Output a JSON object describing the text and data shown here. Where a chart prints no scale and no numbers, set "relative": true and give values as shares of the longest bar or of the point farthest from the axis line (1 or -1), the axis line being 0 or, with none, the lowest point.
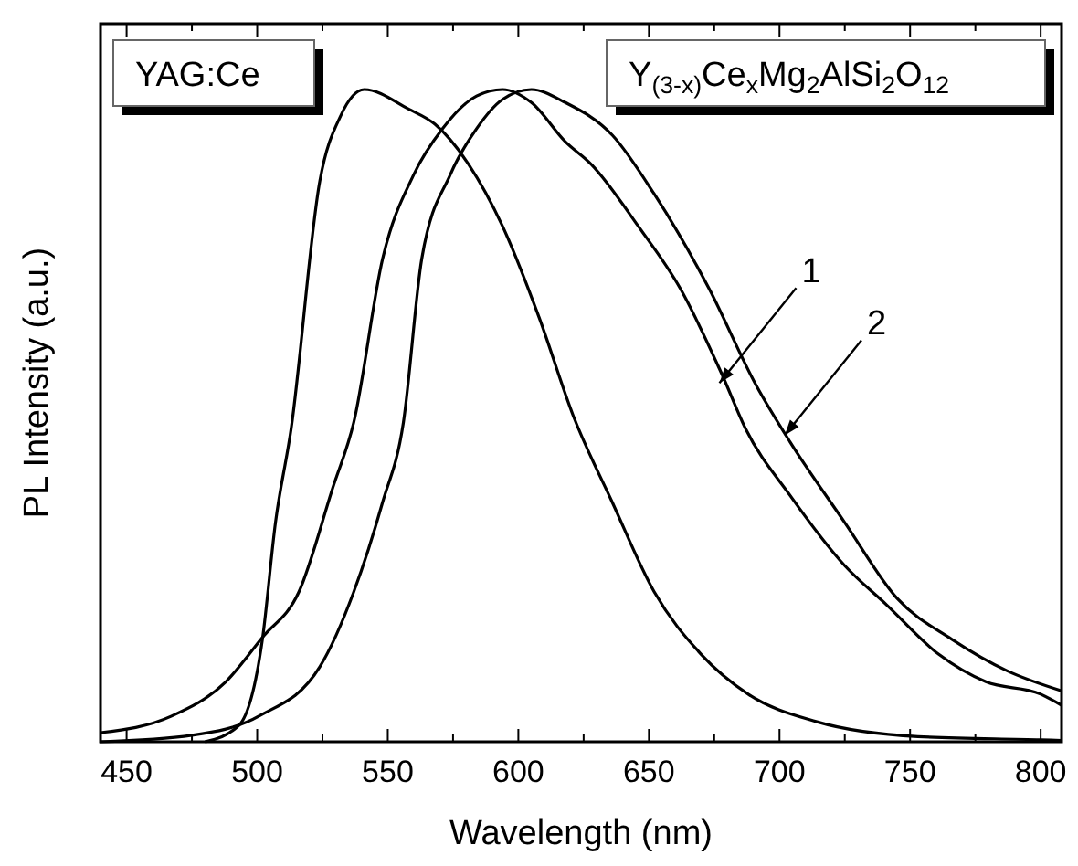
{
  "chart_data": {
    "type": "line",
    "relative": true,
    "xlabel": "Wavelength (nm)",
    "ylabel": "PL Intensity (a.u.)",
    "xlim": [
      440,
      808
    ],
    "xticks": [
      450,
      {
        "value": 475,
        "label": null
      },
      500,
      {
        "value": 525,
        "label": null
      },
      550,
      {
        "value": 575,
        "label": null
      },
      600,
      {
        "value": 625,
        "label": null
      },
      650,
      {
        "value": 675,
        "label": null
      },
      700,
      {
        "value": 725,
        "label": null
      },
      750,
      {
        "value": 775,
        "label": null
      },
      800
    ],
    "grid": false,
    "marker": "none",
    "line_style": "solid",
    "series": [
      {
        "color": "#000000",
        "x": [
          480,
          493,
          502,
          507,
          513,
          524,
          532,
          541,
          558,
          568,
          581,
          594,
          608,
          621,
          636,
          652,
          670,
          688,
          714,
          753,
          800,
          808
        ],
        "values": [
          0,
          0.025,
          0.157,
          0.336,
          0.48,
          0.86,
          0.96,
          1,
          0.97,
          0.947,
          0.885,
          0.79,
          0.65,
          0.5,
          0.367,
          0.23,
          0.134,
          0.073,
          0.031,
          0.008,
          0.003,
          0.002
        ]
      },
      {
        "color": "#000000",
        "x": [
          440,
          467,
          488,
          502,
          516,
          529,
          537,
          548,
          560,
          571,
          584,
          594,
          605,
          618,
          628,
          646,
          662,
          678,
          687,
          704,
          725,
          741,
          761,
          779,
          800,
          808
        ],
        "values": [
          0.014,
          0.039,
          0.092,
          0.16,
          0.23,
          0.39,
          0.49,
          0.74,
          0.87,
          0.94,
          0.99,
          1,
          0.98,
          0.92,
          0.885,
          0.79,
          0.695,
          0.563,
          0.48,
          0.378,
          0.27,
          0.21,
          0.134,
          0.092,
          0.073,
          0.056
        ]
      },
      {
        "color": "#000000",
        "x": [
          440,
          475,
          501,
          524,
          537,
          548,
          556,
          563,
          574,
          584,
          594,
          605,
          618,
          636,
          652,
          673,
          691,
          704,
          725,
          745,
          766,
          787,
          808
        ],
        "values": [
          0,
          0.01,
          0.04,
          0.115,
          0.23,
          0.367,
          0.49,
          0.74,
          0.87,
          0.94,
          0.985,
          1,
          0.98,
          0.93,
          0.84,
          0.695,
          0.547,
          0.46,
          0.336,
          0.22,
          0.157,
          0.109,
          0.078
        ]
      }
    ],
    "annotations": [
      "YAG:Ce",
      "Y$_{(3-x)}$Ce$_{x}$Mg$_{2}$AlSi$_{2}$O$_{12}$",
      {
        "text": "1",
        "x": 677,
        "y": 0.55
      },
      {
        "text": "2",
        "x": 702,
        "y": 0.47
      }
    ]
  }
}
